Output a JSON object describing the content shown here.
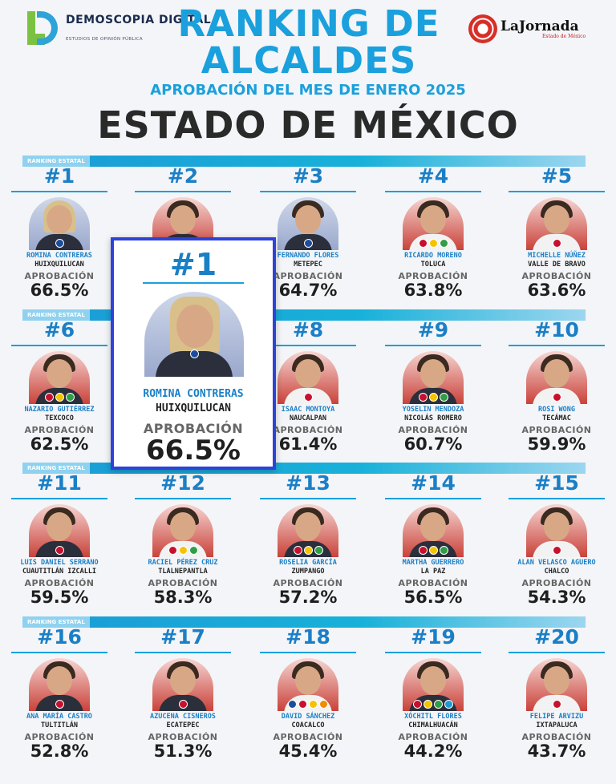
{
  "header": {
    "brand_left": "DEMOSCOPIA DIGITAL",
    "brand_left_sub": "ESTUDIOS DE OPINIÓN PÚBLICA",
    "title_line1": "RANKING DE",
    "title_line2": "ALCALDES",
    "subtitle": "APROBACIÓN DEL MES DE ENERO 2025",
    "state": "ESTADO DE MÉXICO",
    "brand_right": "LaJornada",
    "brand_right_sub": "Estado de México"
  },
  "band_label": "RANKING ESTATAL",
  "approval_label": "APROBACIÓN",
  "featured": {
    "rank": "#1",
    "name": "ROMINA CONTRERAS",
    "municipality": "HUIXQUILUCAN",
    "approval": "66.5%"
  },
  "mayors": [
    {
      "rank": "#1",
      "name": "ROMINA CONTRERAS",
      "municipality": "HUIXQUILUCAN",
      "approval": "66.5%",
      "party": [
        "b"
      ]
    },
    {
      "rank": "#2",
      "name": "",
      "municipality": "",
      "approval": "",
      "party": []
    },
    {
      "rank": "#3",
      "name": "FERNANDO FLORES",
      "municipality": "METEPEC",
      "approval": "64.7%",
      "party": [
        "b"
      ]
    },
    {
      "rank": "#4",
      "name": "RICARDO MORENO",
      "municipality": "TOLUCA",
      "approval": "63.8%",
      "party": [
        "r",
        "y",
        "g"
      ]
    },
    {
      "rank": "#5",
      "name": "MICHELLE NÚÑEZ",
      "municipality": "VALLE DE BRAVO",
      "approval": "63.6%",
      "party": [
        "r"
      ]
    },
    {
      "rank": "#6",
      "name": "NAZARIO GUTIÉRREZ",
      "municipality": "TEXCOCO",
      "approval": "62.5%",
      "party": [
        "r",
        "y",
        "g"
      ]
    },
    {
      "rank": "#7",
      "name": "",
      "municipality": "",
      "approval": "",
      "party": []
    },
    {
      "rank": "#8",
      "name": "ISAAC MONTOYA",
      "municipality": "NAUCALPAN",
      "approval": "61.4%",
      "party": [
        "r"
      ]
    },
    {
      "rank": "#9",
      "name": "YOSELIN MENDOZA",
      "municipality": "NICOLÁS ROMERO",
      "approval": "60.7%",
      "party": [
        "r",
        "y",
        "g"
      ]
    },
    {
      "rank": "#10",
      "name": "ROSI WONG",
      "municipality": "TECÁMAC",
      "approval": "59.9%",
      "party": [
        "r"
      ]
    },
    {
      "rank": "#11",
      "name": "LUIS DANIEL SERRANO",
      "municipality": "CUAUTITLÁN IZCALLI",
      "approval": "59.5%",
      "party": [
        "r"
      ]
    },
    {
      "rank": "#12",
      "name": "RACIEL PÉREZ CRUZ",
      "municipality": "TLALNEPANTLA",
      "approval": "58.3%",
      "party": [
        "r",
        "y",
        "g"
      ]
    },
    {
      "rank": "#13",
      "name": "ROSELIA GARCÍA",
      "municipality": "ZUMPANGO",
      "approval": "57.2%",
      "party": [
        "r",
        "y",
        "g"
      ]
    },
    {
      "rank": "#14",
      "name": "MARTHA GUERRERO",
      "municipality": "LA PAZ",
      "approval": "56.5%",
      "party": [
        "r",
        "y",
        "g"
      ]
    },
    {
      "rank": "#15",
      "name": "ALAN VELASCO AGUERO",
      "municipality": "CHALCO",
      "approval": "54.3%",
      "party": [
        "r"
      ]
    },
    {
      "rank": "#16",
      "name": "ANA MARÍA CASTRO",
      "municipality": "TULTITLÁN",
      "approval": "52.8%",
      "party": [
        "r"
      ]
    },
    {
      "rank": "#17",
      "name": "AZUCENA CISNEROS",
      "municipality": "ECATEPEC",
      "approval": "51.3%",
      "party": [
        "r"
      ]
    },
    {
      "rank": "#18",
      "name": "DAVID SÁNCHEZ",
      "municipality": "COACALCO",
      "approval": "45.4%",
      "party": [
        "b",
        "r",
        "y",
        "o"
      ]
    },
    {
      "rank": "#19",
      "name": "XÓCHITL FLORES",
      "municipality": "CHIMALHUACÁN",
      "approval": "44.2%",
      "party": [
        "r",
        "y",
        "g",
        "t"
      ]
    },
    {
      "rank": "#20",
      "name": "FELIPE ARVIZU",
      "municipality": "IXTAPALUCA",
      "approval": "43.7%",
      "party": [
        "r"
      ]
    }
  ]
}
